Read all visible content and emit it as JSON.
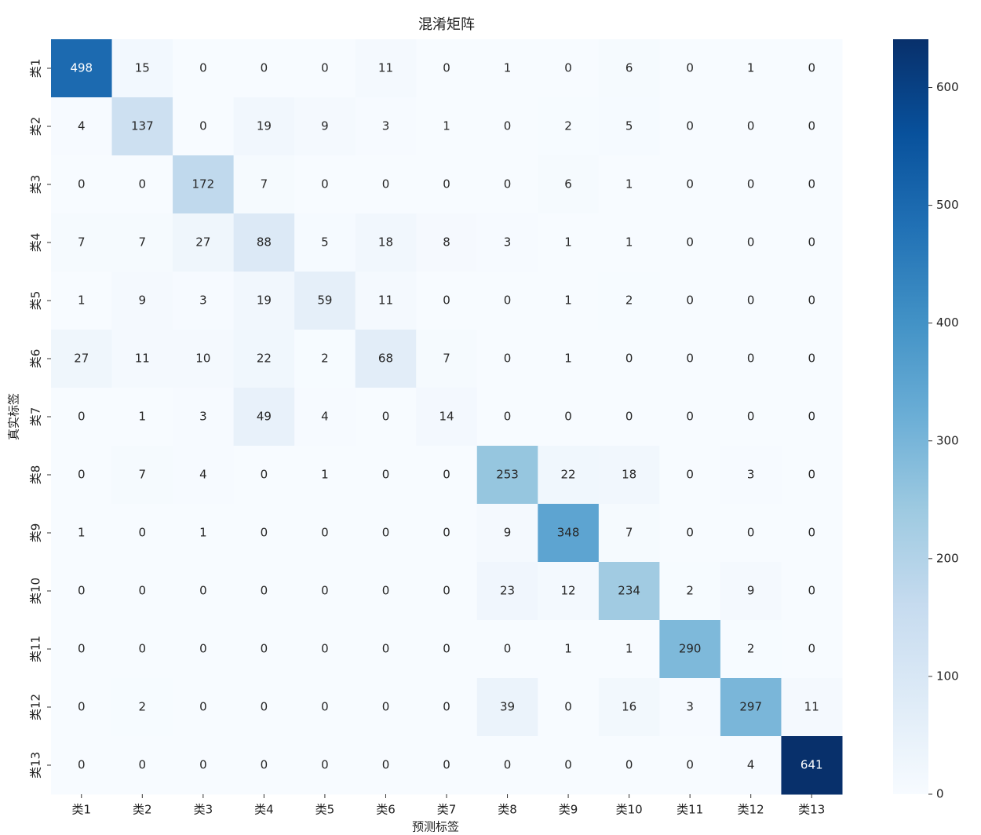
{
  "chart_data": {
    "type": "heatmap",
    "title": "混淆矩阵",
    "xlabel": "预测标签",
    "ylabel": "真实标签",
    "x_categories": [
      "类1",
      "类2",
      "类3",
      "类4",
      "类5",
      "类6",
      "类7",
      "类8",
      "类9",
      "类10",
      "类11",
      "类12",
      "类13"
    ],
    "y_categories": [
      "类1",
      "类2",
      "类3",
      "类4",
      "类5",
      "类6",
      "类7",
      "类8",
      "类9",
      "类10",
      "类11",
      "类12",
      "类13"
    ],
    "values": [
      [
        498,
        15,
        0,
        0,
        0,
        11,
        0,
        1,
        0,
        6,
        0,
        1,
        0
      ],
      [
        4,
        137,
        0,
        19,
        9,
        3,
        1,
        0,
        2,
        5,
        0,
        0,
        0
      ],
      [
        0,
        0,
        172,
        7,
        0,
        0,
        0,
        0,
        6,
        1,
        0,
        0,
        0
      ],
      [
        7,
        7,
        27,
        88,
        5,
        18,
        8,
        3,
        1,
        1,
        0,
        0,
        0
      ],
      [
        1,
        9,
        3,
        19,
        59,
        11,
        0,
        0,
        1,
        2,
        0,
        0,
        0
      ],
      [
        27,
        11,
        10,
        22,
        2,
        68,
        7,
        0,
        1,
        0,
        0,
        0,
        0
      ],
      [
        0,
        1,
        3,
        49,
        4,
        0,
        14,
        0,
        0,
        0,
        0,
        0,
        0
      ],
      [
        0,
        7,
        4,
        0,
        1,
        0,
        0,
        253,
        22,
        18,
        0,
        3,
        0
      ],
      [
        1,
        0,
        1,
        0,
        0,
        0,
        0,
        9,
        348,
        7,
        0,
        0,
        0
      ],
      [
        0,
        0,
        0,
        0,
        0,
        0,
        0,
        23,
        12,
        234,
        2,
        9,
        0
      ],
      [
        0,
        0,
        0,
        0,
        0,
        0,
        0,
        0,
        1,
        1,
        290,
        2,
        0
      ],
      [
        0,
        2,
        0,
        0,
        0,
        0,
        0,
        39,
        0,
        16,
        3,
        297,
        11
      ],
      [
        0,
        0,
        0,
        0,
        0,
        0,
        0,
        0,
        0,
        0,
        0,
        4,
        641
      ]
    ],
    "colormap": "Blues",
    "clim": [
      0,
      641
    ],
    "cticks": [
      0,
      100,
      200,
      300,
      400,
      500,
      600
    ]
  }
}
